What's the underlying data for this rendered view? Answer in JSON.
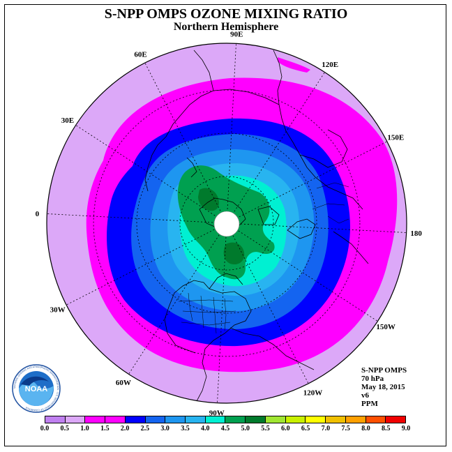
{
  "title": "S-NPP OMPS OZONE MIXING RATIO",
  "subtitle": "Northern Hemisphere",
  "longitude_labels": [
    {
      "text": "90E",
      "lon": 90
    },
    {
      "text": "60E",
      "lon": 60
    },
    {
      "text": "30E",
      "lon": 30
    },
    {
      "text": "0",
      "lon": 0
    },
    {
      "text": "30W",
      "lon": -30
    },
    {
      "text": "60W",
      "lon": -60
    },
    {
      "text": "90W",
      "lon": -90
    },
    {
      "text": "120W",
      "lon": -120
    },
    {
      "text": "150W",
      "lon": -150
    },
    {
      "text": "180",
      "lon": 180
    },
    {
      "text": "150E",
      "lon": 150
    },
    {
      "text": "120E",
      "lon": 120
    }
  ],
  "info": {
    "instrument": "S-NPP OMPS",
    "level": "70 hPa",
    "date": "May 18, 2015",
    "version": "v6",
    "units": "PPM"
  },
  "logo": {
    "text": "NOAA",
    "ring_text": "NATIONAL OCEANIC AND ATMOSPHERIC ADMINISTRATION · U.S. DEPARTMENT OF COMMERCE"
  },
  "colorbar": {
    "ticks": [
      "0.0",
      "0.5",
      "1.0",
      "1.5",
      "2.0",
      "2.5",
      "3.0",
      "3.5",
      "4.0",
      "4.5",
      "5.0",
      "5.5",
      "6.0",
      "6.5",
      "7.0",
      "7.5",
      "8.0",
      "8.5",
      "9.0"
    ],
    "colors": [
      "#c080f0",
      "#dca8f8",
      "#ff00ff",
      "#ff00ff",
      "#0000ff",
      "#1464f0",
      "#1e96f0",
      "#28b4f0",
      "#00f0d2",
      "#00a050",
      "#007a2c",
      "#a0e632",
      "#c8f000",
      "#ffff00",
      "#f0c000",
      "#ffa000",
      "#ff5000",
      "#f00000",
      "#8c5a3c"
    ]
  },
  "chart_data": {
    "type": "heatmap",
    "projection": "north polar stereographic",
    "variable": "ozone mixing ratio",
    "units": "PPM",
    "levels": [
      0.0,
      0.5,
      1.0,
      1.5,
      2.0,
      2.5,
      3.0,
      3.5,
      4.0,
      4.5,
      5.0,
      5.5,
      6.0,
      6.5,
      7.0,
      7.5,
      8.0,
      8.5,
      9.0
    ],
    "regions": [
      {
        "latitude_band": "outer edge (~0N-15N)",
        "range": [
          0.5,
          1.0
        ]
      },
      {
        "latitude_band": "subtropics (~15N-30N)",
        "range": [
          1.0,
          1.5
        ]
      },
      {
        "latitude_band": "mid-latitudes (~35N-45N)",
        "range": [
          2.0,
          2.5
        ]
      },
      {
        "latitude_band": "high latitudes (~50N-65N)",
        "range": [
          3.0,
          4.0
        ]
      },
      {
        "latitude_band": "polar cap (~70N-85N)",
        "range": [
          4.0,
          5.0
        ]
      }
    ],
    "no_data_region": "north pole (near 90N)"
  }
}
